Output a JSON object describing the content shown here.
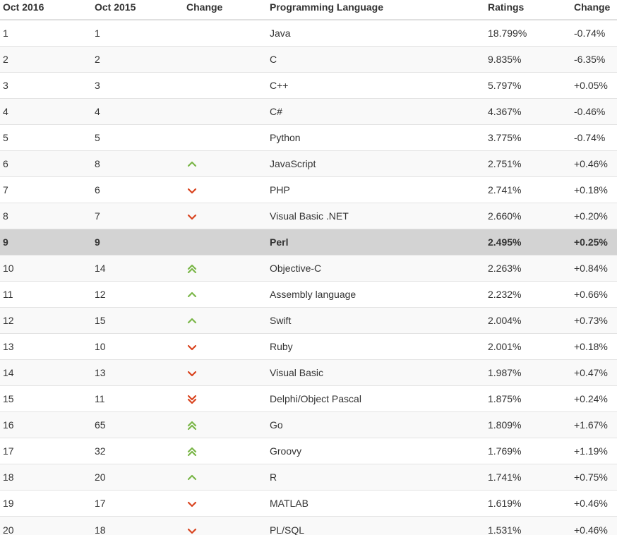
{
  "header": {
    "col1": "Oct 2016",
    "col2": "Oct 2015",
    "col3": "Change",
    "col4": "Programming Language",
    "col5": "Ratings",
    "col6": "Change"
  },
  "colors": {
    "up": "#7ab648",
    "down": "#d9431e",
    "highlight": "#d3d3d3"
  },
  "rows": [
    {
      "rank": "1",
      "prev": "1",
      "trend": "none",
      "lang": "Java",
      "rating": "18.799%",
      "change": "-0.74%"
    },
    {
      "rank": "2",
      "prev": "2",
      "trend": "none",
      "lang": "C",
      "rating": "9.835%",
      "change": "-6.35%"
    },
    {
      "rank": "3",
      "prev": "3",
      "trend": "none",
      "lang": "C++",
      "rating": "5.797%",
      "change": "+0.05%"
    },
    {
      "rank": "4",
      "prev": "4",
      "trend": "none",
      "lang": "C#",
      "rating": "4.367%",
      "change": "-0.46%"
    },
    {
      "rank": "5",
      "prev": "5",
      "trend": "none",
      "lang": "Python",
      "rating": "3.775%",
      "change": "-0.74%"
    },
    {
      "rank": "6",
      "prev": "8",
      "trend": "up",
      "lang": "JavaScript",
      "rating": "2.751%",
      "change": "+0.46%"
    },
    {
      "rank": "7",
      "prev": "6",
      "trend": "down",
      "lang": "PHP",
      "rating": "2.741%",
      "change": "+0.18%"
    },
    {
      "rank": "8",
      "prev": "7",
      "trend": "down",
      "lang": "Visual Basic .NET",
      "rating": "2.660%",
      "change": "+0.20%"
    },
    {
      "rank": "9",
      "prev": "9",
      "trend": "none",
      "lang": "Perl",
      "rating": "2.495%",
      "change": "+0.25%",
      "highlight": true
    },
    {
      "rank": "10",
      "prev": "14",
      "trend": "double-up",
      "lang": "Objective-C",
      "rating": "2.263%",
      "change": "+0.84%"
    },
    {
      "rank": "11",
      "prev": "12",
      "trend": "up",
      "lang": "Assembly language",
      "rating": "2.232%",
      "change": "+0.66%"
    },
    {
      "rank": "12",
      "prev": "15",
      "trend": "up",
      "lang": "Swift",
      "rating": "2.004%",
      "change": "+0.73%"
    },
    {
      "rank": "13",
      "prev": "10",
      "trend": "down",
      "lang": "Ruby",
      "rating": "2.001%",
      "change": "+0.18%"
    },
    {
      "rank": "14",
      "prev": "13",
      "trend": "down",
      "lang": "Visual Basic",
      "rating": "1.987%",
      "change": "+0.47%"
    },
    {
      "rank": "15",
      "prev": "11",
      "trend": "double-down",
      "lang": "Delphi/Object Pascal",
      "rating": "1.875%",
      "change": "+0.24%"
    },
    {
      "rank": "16",
      "prev": "65",
      "trend": "double-up",
      "lang": "Go",
      "rating": "1.809%",
      "change": "+1.67%"
    },
    {
      "rank": "17",
      "prev": "32",
      "trend": "double-up",
      "lang": "Groovy",
      "rating": "1.769%",
      "change": "+1.19%"
    },
    {
      "rank": "18",
      "prev": "20",
      "trend": "up",
      "lang": "R",
      "rating": "1.741%",
      "change": "+0.75%"
    },
    {
      "rank": "19",
      "prev": "17",
      "trend": "down",
      "lang": "MATLAB",
      "rating": "1.619%",
      "change": "+0.46%"
    },
    {
      "rank": "20",
      "prev": "18",
      "trend": "down",
      "lang": "PL/SQL",
      "rating": "1.531%",
      "change": "+0.46%"
    }
  ]
}
